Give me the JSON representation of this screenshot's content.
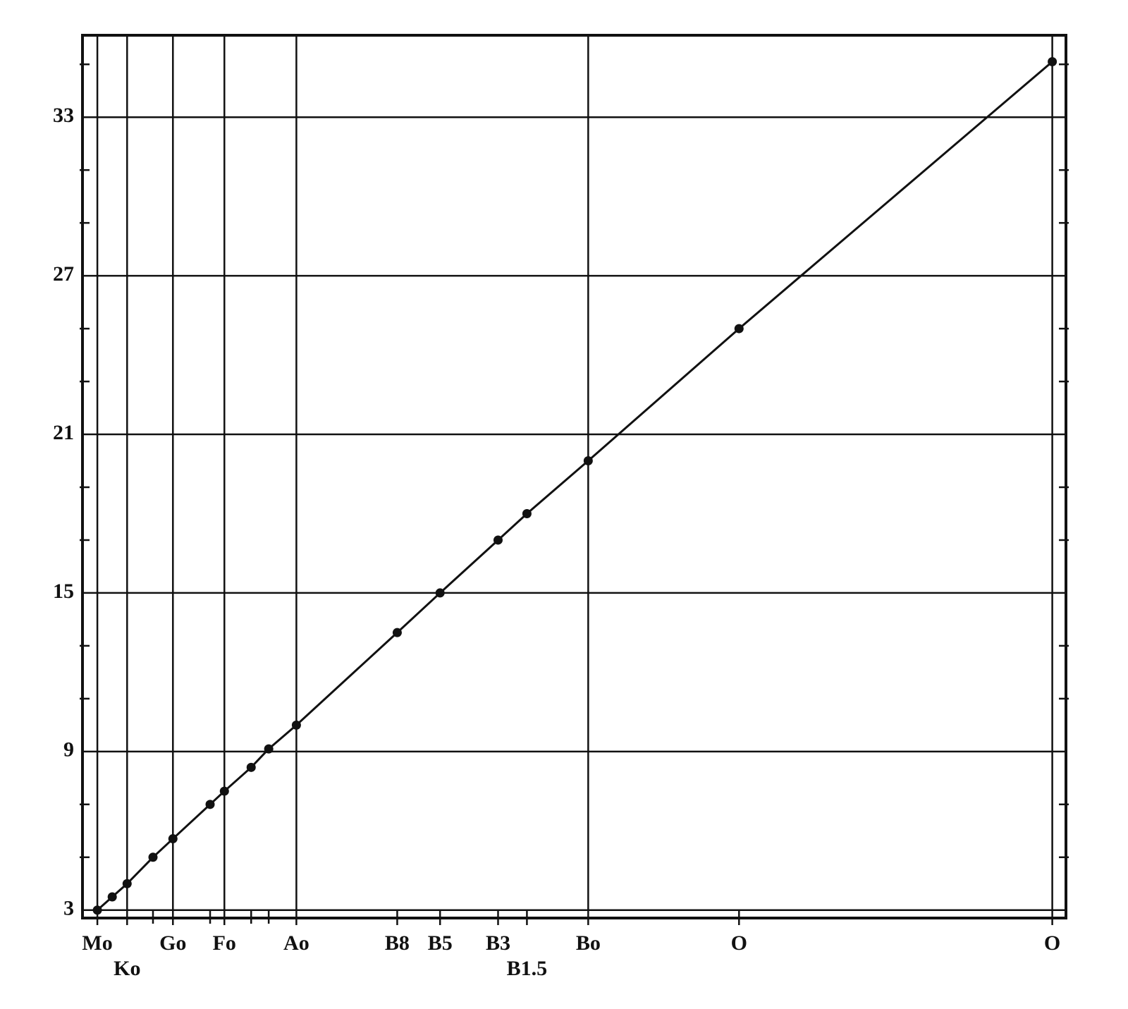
{
  "chart_data": {
    "type": "line",
    "color": "#111111",
    "markers": true,
    "x": [
      3,
      3.5,
      4.0,
      4.87,
      5.54,
      6.79,
      7.27,
      8.17,
      8.76,
      9.69,
      13.08,
      14.52,
      16.47,
      17.44,
      19.5,
      24.57,
      35.1
    ],
    "values": [
      3,
      3.5,
      4.0,
      5.0,
      5.7,
      7.0,
      7.5,
      8.4,
      9.1,
      10.0,
      13.5,
      15.0,
      17.0,
      18.0,
      20.0,
      25.0,
      35.1
    ],
    "xlim": [
      2.5,
      35.56
    ],
    "ylim": [
      2.7,
      36.1
    ],
    "xticks": [
      {
        "value": 3,
        "label": "Mo",
        "grid": true
      },
      {
        "value": 4.0,
        "label": "Ko",
        "grid": true
      },
      {
        "value": 5.54,
        "label": "Go",
        "grid": true
      },
      {
        "value": 7.27,
        "label": "Fo",
        "grid": true
      },
      {
        "value": 9.69,
        "label": "Ao",
        "grid": true
      },
      {
        "value": 13.08,
        "label": "B8",
        "grid": false
      },
      {
        "value": 14.52,
        "label": "B5",
        "grid": false
      },
      {
        "value": 16.47,
        "label": "B3",
        "grid": false
      },
      {
        "value": 17.44,
        "label": "B1.5",
        "grid": false
      },
      {
        "value": 19.5,
        "label": "Bo",
        "grid": true
      },
      {
        "value": 24.57,
        "label": "O",
        "grid": false
      },
      {
        "value": 35.1,
        "label": "O",
        "grid": true
      }
    ],
    "xminor": [
      4.87,
      6.79,
      8.17,
      8.76
    ],
    "yticks": [
      3,
      9,
      15,
      21,
      27,
      33
    ],
    "yminor": [
      5,
      7,
      11,
      13,
      17,
      19,
      23,
      25,
      29,
      31,
      35
    ],
    "grid": true
  }
}
